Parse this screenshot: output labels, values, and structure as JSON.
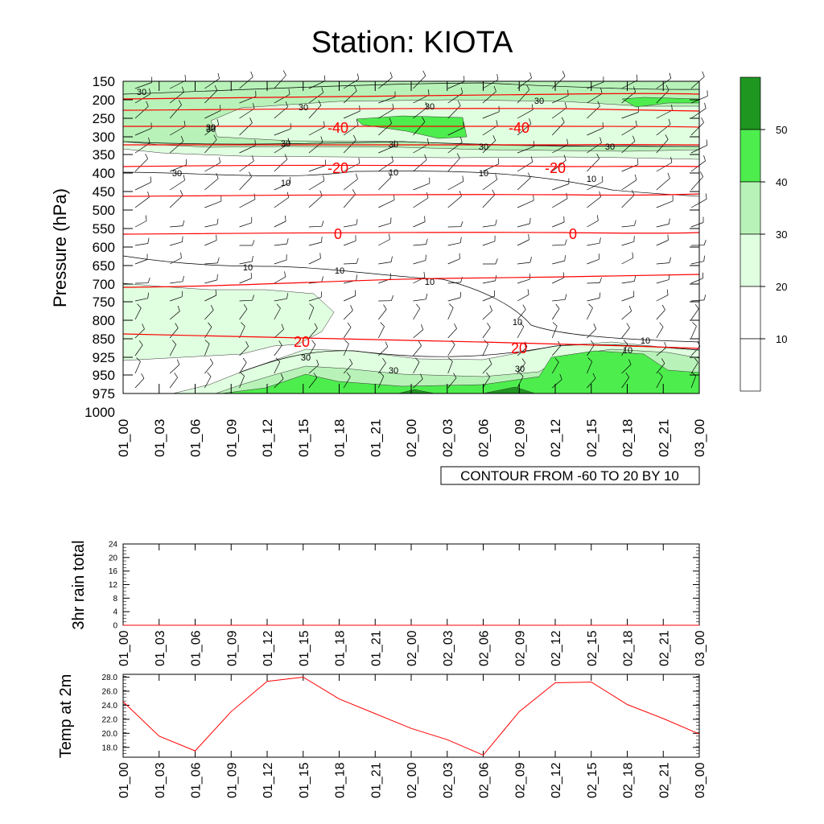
{
  "title": "Station: KIOTA",
  "colors": {
    "contour_line": "#ff0000",
    "shade_10_20": "#ffffff",
    "shade_20_30": "#e0ffe0",
    "shade_30_40": "#b8f2b8",
    "shade_40_50": "#4ded4d",
    "shade_50_plus": "#1e9620",
    "temp_line": "#ff0000"
  },
  "chart_data": [
    {
      "type": "contour",
      "name": "cross-section",
      "ylabel": "Pressure (hPa)",
      "y_ticks": [
        "150",
        "200",
        "250",
        "300",
        "350",
        "400",
        "450",
        "500",
        "550",
        "600",
        "650",
        "700",
        "750",
        "800",
        "850",
        "925",
        "950",
        "975",
        "1000"
      ],
      "x_ticks": [
        "01_00",
        "01_03",
        "01_06",
        "01_09",
        "01_12",
        "01_15",
        "01_18",
        "01_21",
        "02_00",
        "02_03",
        "02_06",
        "02_09",
        "02_12",
        "02_15",
        "02_18",
        "02_21",
        "03_00"
      ],
      "contour_info": "CONTOUR FROM -60 TO 20 BY 10",
      "temperature_contours": [
        {
          "level": "-40",
          "label_positions": [
            "01_18",
            "02_09"
          ]
        },
        {
          "level": "-20",
          "label_positions": [
            "01_18",
            "02_12"
          ]
        },
        {
          "level": "0",
          "label_positions": [
            "01_18",
            "02_12"
          ]
        },
        {
          "level": "20",
          "label_positions": [
            "01_15",
            "02_09"
          ]
        }
      ],
      "wind_speed_labels": [
        "30",
        "30",
        "30",
        "30",
        "30",
        "30",
        "30",
        "30",
        "30",
        "30",
        "10",
        "10",
        "10",
        "10",
        "10",
        "10",
        "10",
        "10",
        "10",
        "30",
        "30",
        "30",
        "10",
        "30"
      ],
      "colorbar": {
        "levels": [
          "10",
          "20",
          "30",
          "40",
          "50"
        ]
      }
    },
    {
      "type": "line",
      "name": "rain",
      "ylabel": "3hr rain total",
      "x": [
        "01_00",
        "01_03",
        "01_06",
        "01_09",
        "01_12",
        "01_15",
        "01_18",
        "01_21",
        "02_00",
        "02_03",
        "02_06",
        "02_09",
        "02_12",
        "02_15",
        "02_18",
        "02_21",
        "03_00"
      ],
      "y_ticks": [
        "0",
        "4",
        "8",
        "12",
        "16",
        "20",
        "24"
      ],
      "ylim": [
        0,
        24
      ],
      "values": [
        0,
        0,
        0,
        0,
        0,
        0,
        0,
        0,
        0,
        0,
        0,
        0,
        0,
        0,
        0,
        0,
        0
      ]
    },
    {
      "type": "line",
      "name": "temperature",
      "ylabel": "Temp at 2m",
      "x": [
        "01_00",
        "01_03",
        "01_06",
        "01_09",
        "01_12",
        "01_15",
        "01_18",
        "01_21",
        "02_00",
        "02_03",
        "02_06",
        "02_09",
        "02_12",
        "02_15",
        "02_18",
        "02_21",
        "03_00"
      ],
      "y_ticks": [
        "18.0",
        "20.0",
        "22.0",
        "24.0",
        "26.0",
        "28.0"
      ],
      "ylim": [
        16.6,
        28.4
      ],
      "values": [
        24.5,
        19.6,
        17.5,
        23.1,
        27.4,
        28.0,
        24.9,
        22.8,
        20.7,
        19.1,
        16.9,
        23.1,
        27.2,
        27.3,
        24.1,
        22.1,
        19.9
      ]
    }
  ]
}
